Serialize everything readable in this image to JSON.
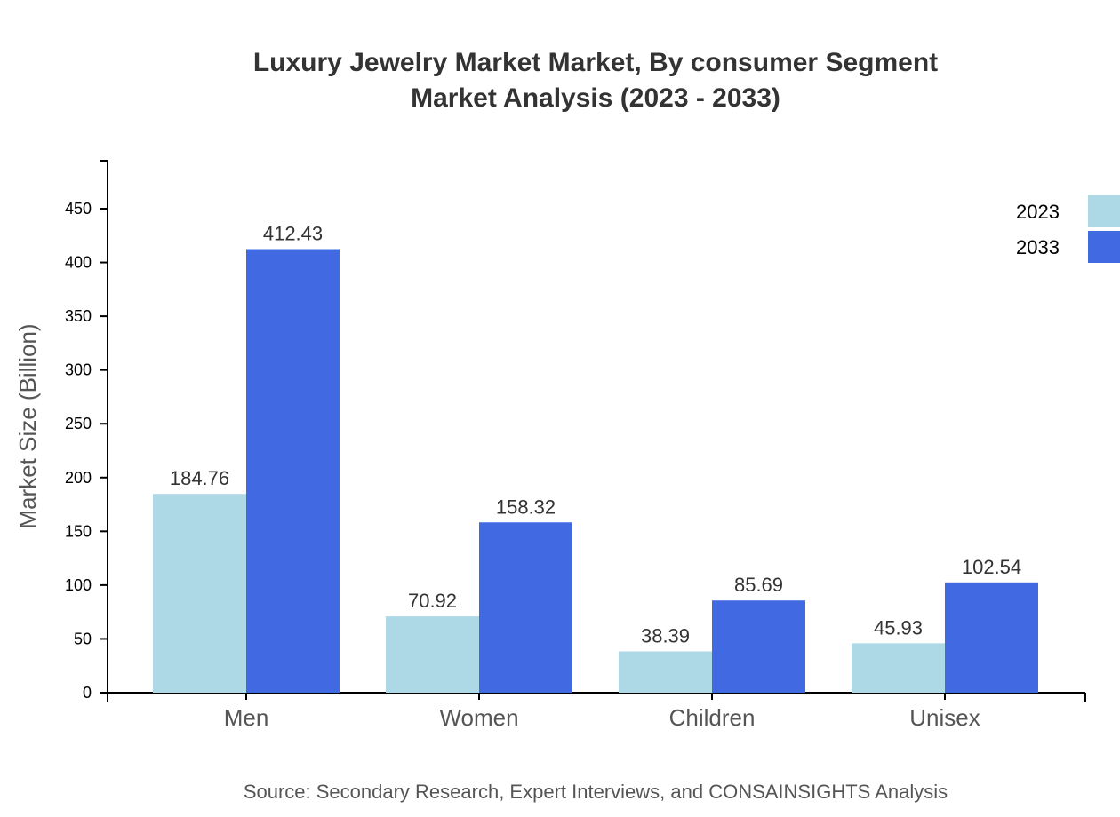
{
  "chart_data": {
    "type": "bar",
    "title": [
      "Luxury Jewelry Market Market, By consumer Segment",
      "Market Analysis (2023 - 2033)"
    ],
    "xlabel": "",
    "ylabel": "Market Size (Billion)",
    "categories": [
      "Men",
      "Women",
      "Children",
      "Unisex"
    ],
    "series": [
      {
        "name": "2023",
        "color": "#add8e6",
        "values": [
          184.76,
          70.92,
          38.39,
          45.93
        ],
        "labels": [
          "184.76",
          "70.92",
          "38.39",
          "45.93"
        ]
      },
      {
        "name": "2033",
        "color": "#4169e1",
        "values": [
          412.43,
          158.32,
          85.69,
          102.54
        ],
        "labels": [
          "412.43",
          "158.32",
          "85.69",
          "102.54"
        ]
      }
    ],
    "ylim": [
      0,
      495
    ],
    "yticks": [
      "0",
      "50",
      "100",
      "150",
      "200",
      "250",
      "300",
      "350",
      "400",
      "450"
    ],
    "grid": false,
    "legend_position": "top-right",
    "source": "Source: Secondary Research, Expert Interviews, and CONSAINSIGHTS Analysis"
  }
}
